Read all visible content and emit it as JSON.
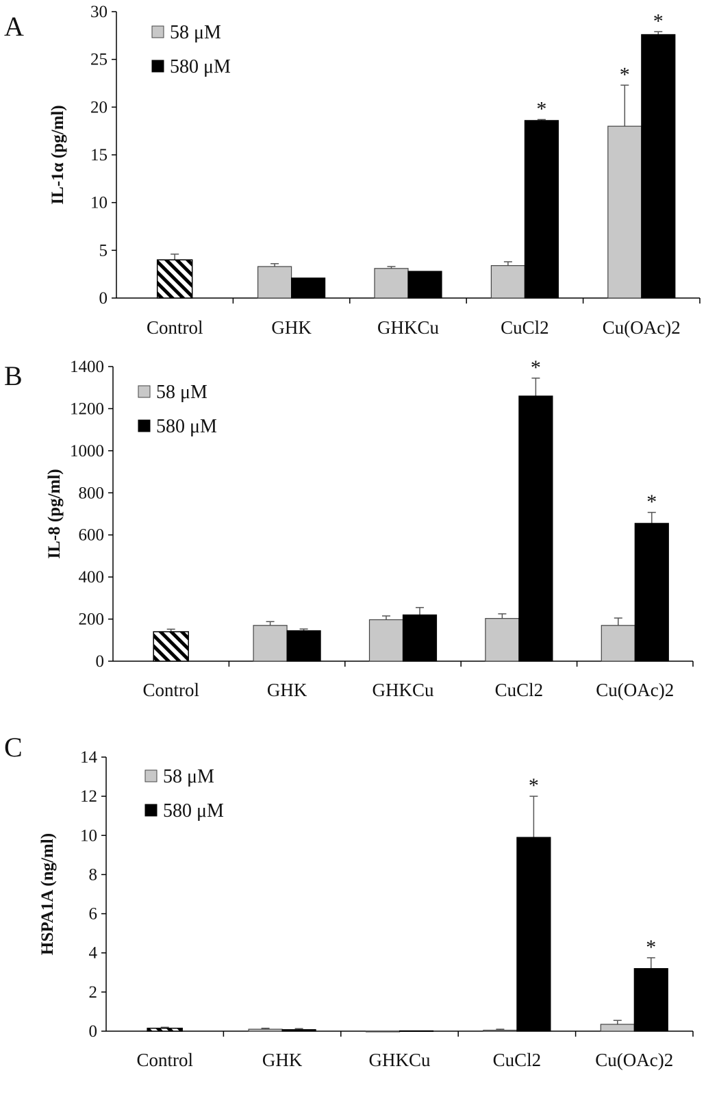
{
  "colors": {
    "low": "#c8c8c8",
    "high": "#000000",
    "control_hatch": "#000000",
    "axis": "#000000"
  },
  "legend": {
    "low_label": "58 μM",
    "high_label": "580 μM"
  },
  "chart_data": [
    {
      "panel": "A",
      "type": "bar",
      "ylabel": "IL-1α (pg/ml)",
      "ylim": [
        0,
        30
      ],
      "yticks": [
        0,
        5,
        10,
        15,
        20,
        25,
        30
      ],
      "categories": [
        "Control",
        "GHK",
        "GHKCu",
        "CuCl2",
        "Cu(OAc)2"
      ],
      "control": {
        "value": 4.0,
        "error": 0.6
      },
      "series": [
        {
          "name": "58 μM",
          "values": [
            null,
            3.3,
            3.1,
            3.4,
            18.0
          ],
          "errors": [
            null,
            0.3,
            0.2,
            0.4,
            4.3
          ]
        },
        {
          "name": "580 μM",
          "values": [
            null,
            2.1,
            2.8,
            18.6,
            27.6
          ],
          "errors": [
            null,
            0.0,
            0.0,
            0.1,
            0.3
          ]
        }
      ],
      "significance": [
        {
          "category": "CuCl2",
          "series": "580 μM",
          "label": "*"
        },
        {
          "category": "Cu(OAc)2",
          "series": "58 μM",
          "label": "*"
        },
        {
          "category": "Cu(OAc)2",
          "series": "580 μM",
          "label": "*"
        }
      ]
    },
    {
      "panel": "B",
      "type": "bar",
      "ylabel": "IL-8 (pg/ml)",
      "ylim": [
        0,
        1400
      ],
      "yticks": [
        0,
        200,
        400,
        600,
        800,
        1000,
        1200,
        1400
      ],
      "categories": [
        "Control",
        "GHK",
        "GHKCu",
        "CuCl2",
        "Cu(OAc)2"
      ],
      "control": {
        "value": 140,
        "error": 12
      },
      "series": [
        {
          "name": "58 μM",
          "values": [
            null,
            170,
            197,
            203,
            170
          ],
          "errors": [
            null,
            18,
            18,
            22,
            35
          ]
        },
        {
          "name": "580 μM",
          "values": [
            null,
            145,
            220,
            1260,
            655
          ],
          "errors": [
            null,
            8,
            35,
            85,
            52
          ]
        }
      ],
      "significance": [
        {
          "category": "CuCl2",
          "series": "580 μM",
          "label": "*"
        },
        {
          "category": "Cu(OAc)2",
          "series": "580 μM",
          "label": "*"
        }
      ]
    },
    {
      "panel": "C",
      "type": "bar",
      "ylabel": "HSPA1A (ng/ml)",
      "ylim": [
        0,
        14
      ],
      "yticks": [
        0,
        2,
        4,
        6,
        8,
        10,
        12,
        14
      ],
      "categories": [
        "Control",
        "GHK",
        "GHKCu",
        "CuCl2",
        "Cu(OAc)2"
      ],
      "control": {
        "value": 0.15,
        "error": 0.05
      },
      "series": [
        {
          "name": "58 μM",
          "values": [
            null,
            0.1,
            0.0,
            0.05,
            0.35
          ],
          "errors": [
            null,
            0.05,
            0.0,
            0.05,
            0.2
          ]
        },
        {
          "name": "580 μM",
          "values": [
            null,
            0.08,
            0.02,
            9.9,
            3.2
          ],
          "errors": [
            null,
            0.05,
            0.0,
            2.1,
            0.55
          ]
        }
      ],
      "significance": [
        {
          "category": "CuCl2",
          "series": "580 μM",
          "label": "*"
        },
        {
          "category": "Cu(OAc)2",
          "series": "580 μM",
          "label": "*"
        }
      ]
    }
  ]
}
